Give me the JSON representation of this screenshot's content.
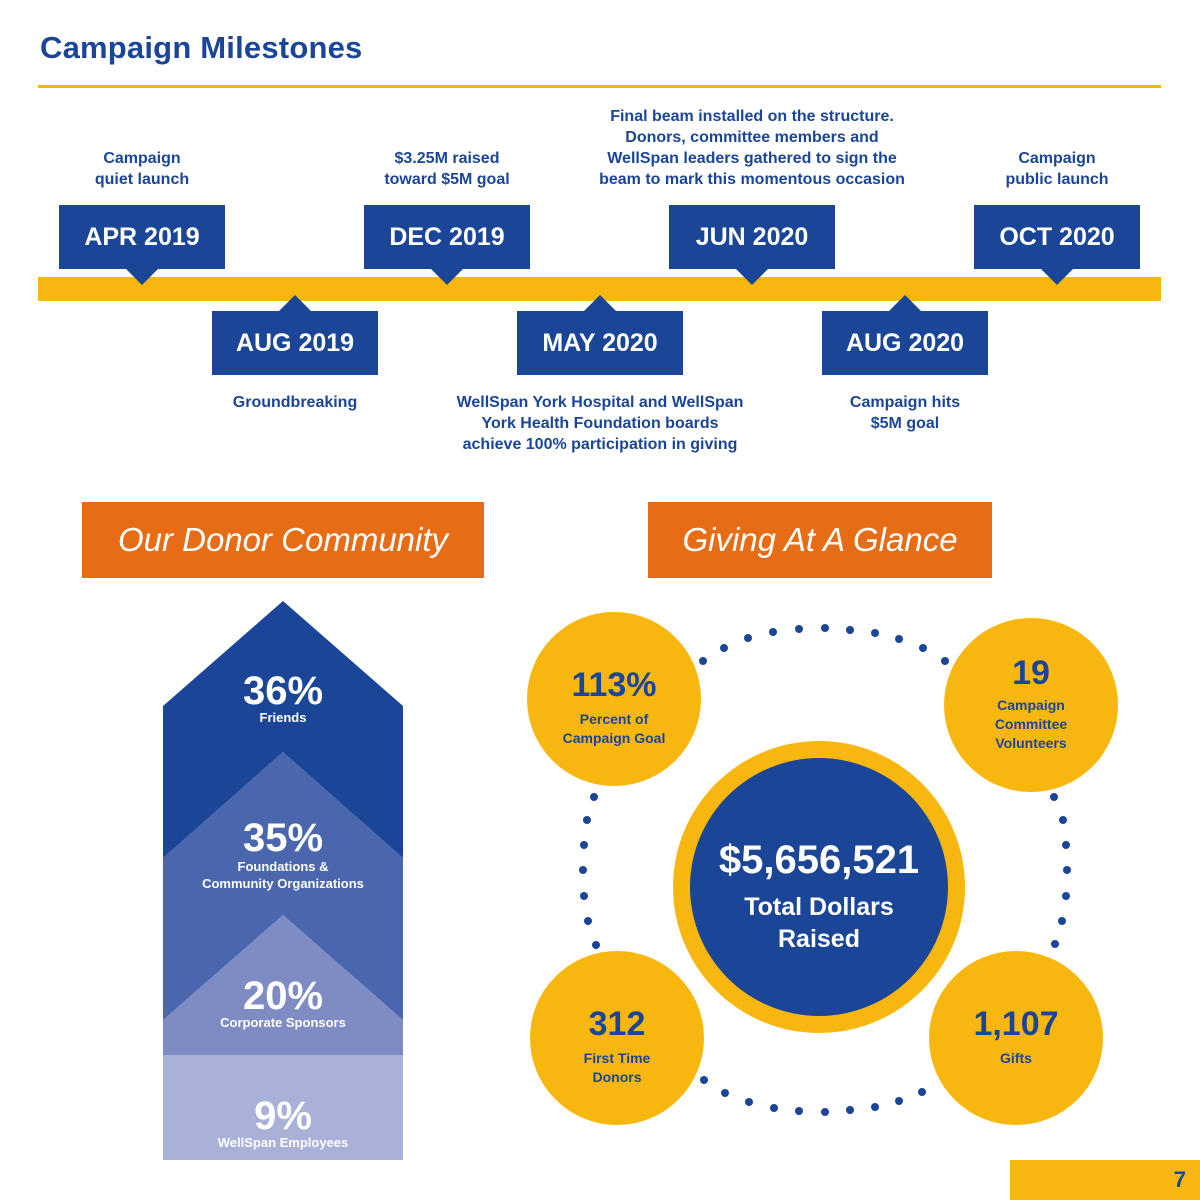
{
  "header": {
    "title": "Campaign Milestones"
  },
  "colors": {
    "blue": "#1b4597",
    "gold": "#f8b70f",
    "orange": "#e76c16"
  },
  "timeline": [
    {
      "date": "APR 2019",
      "caption": "Campaign\nquiet launch"
    },
    {
      "date": "AUG 2019",
      "caption": "Groundbreaking"
    },
    {
      "date": "DEC 2019",
      "caption": "$3.25M raised\ntoward $5M goal"
    },
    {
      "date": "MAY 2020",
      "caption": "WellSpan York Hospital and WellSpan\nYork Health Foundation boards\nachieve 100% participation in giving"
    },
    {
      "date": "JUN 2020",
      "caption": "Final beam installed on the structure.\nDonors, committee members and\nWellSpan leaders gathered to sign the\nbeam to mark this momentous occasion"
    },
    {
      "date": "AUG 2020",
      "caption": "Campaign hits\n$5M goal"
    },
    {
      "date": "OCT 2020",
      "caption": "Campaign\npublic launch"
    }
  ],
  "donor_community": {
    "heading": "Our Donor Community",
    "segments": [
      {
        "percent": "36%",
        "label": "Friends",
        "value": 36
      },
      {
        "percent": "35%",
        "label": "Foundations &\nCommunity Organizations",
        "value": 35
      },
      {
        "percent": "20%",
        "label": "Corporate Sponsors",
        "value": 20
      },
      {
        "percent": "9%",
        "label": "WellSpan Employees",
        "value": 9
      }
    ]
  },
  "giving": {
    "heading": "Giving At A Glance",
    "total": {
      "value": "$5,656,521",
      "label": "Total Dollars\nRaised"
    },
    "stats": [
      {
        "value": "113%",
        "label": "Percent of\nCampaign Goal"
      },
      {
        "value": "19",
        "label": "Campaign\nCommittee\nVolunteers"
      },
      {
        "value": "312",
        "label": "First Time\nDonors"
      },
      {
        "value": "1,107",
        "label": "Gifts"
      }
    ]
  },
  "page": {
    "number": "7"
  }
}
